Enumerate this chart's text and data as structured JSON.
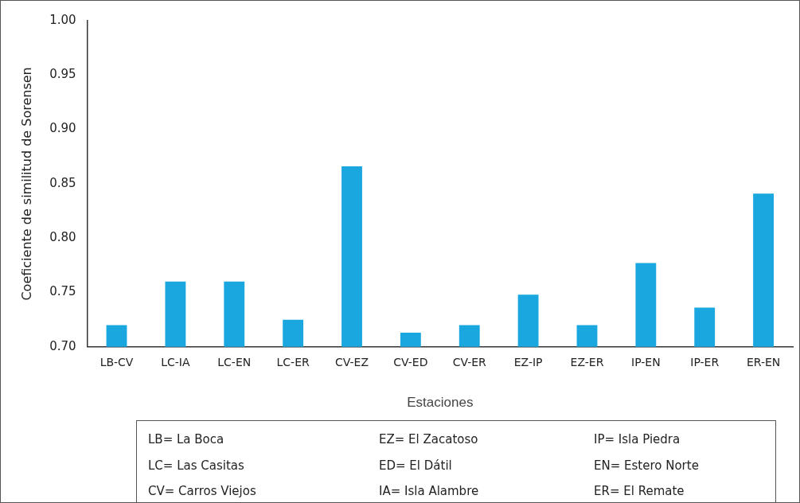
{
  "chart_data": {
    "type": "bar",
    "xlabel": "Estaciones",
    "ylabel": "Coeficiente de similitud de Sorensen",
    "categories": [
      "LB-CV",
      "LC-IA",
      "LC-EN",
      "LC-ER",
      "CV-EZ",
      "CV-ED",
      "CV-ER",
      "EZ-IP",
      "EZ-ER",
      "IP-EN",
      "IP-ER",
      "ER-EN"
    ],
    "values": [
      0.72,
      0.76,
      0.76,
      0.725,
      0.866,
      0.713,
      0.72,
      0.748,
      0.72,
      0.777,
      0.736,
      0.841
    ],
    "color": "#1aa7e0",
    "ylim": [
      0.7,
      1.0
    ],
    "yticks": [
      {
        "value": 0.7,
        "label": "0.70"
      },
      {
        "value": 0.75,
        "label": "0.75"
      },
      {
        "value": 0.8,
        "label": "0.80"
      },
      {
        "value": 0.85,
        "label": "0.85"
      },
      {
        "value": 0.9,
        "label": "0.90"
      },
      {
        "value": 0.95,
        "label": "0.95"
      },
      {
        "value": 1.0,
        "label": "1.00"
      }
    ],
    "grid": false,
    "legend": false,
    "annotations": [
      "LB= La Boca",
      "EZ= El Zacatoso",
      "IP= Isla Piedra",
      "LC= Las Casitas",
      "ED= El Dátil",
      "EN= Estero Norte",
      "CV= Carros Viejos",
      "IA= Isla Alambre",
      "ER= El Remate"
    ]
  }
}
